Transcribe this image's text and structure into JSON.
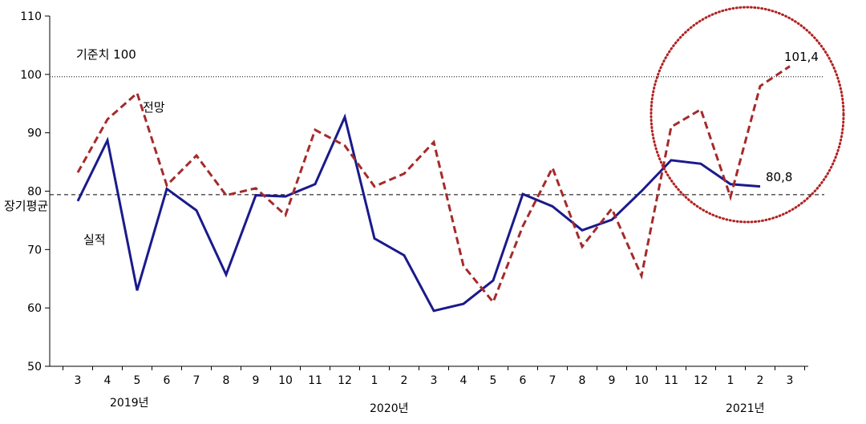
{
  "chart_data": {
    "type": "line",
    "categories": [
      "3",
      "4",
      "5",
      "6",
      "7",
      "8",
      "9",
      "10",
      "11",
      "12",
      "1",
      "2",
      "3",
      "4",
      "5",
      "6",
      "7",
      "8",
      "9",
      "10",
      "11",
      "12",
      "1",
      "2",
      "3"
    ],
    "year_labels": [
      "2019년",
      "2020년",
      "2021년"
    ],
    "ylim": [
      50,
      110
    ],
    "yticks": [
      50,
      60,
      70,
      80,
      90,
      100,
      110
    ],
    "series": [
      {
        "name": "실적",
        "color": "#1a1a8c",
        "style": "solid",
        "values": [
          78.3,
          88.7,
          63.0,
          80.4,
          76.7,
          65.7,
          79.3,
          79.1,
          81.2,
          92.7,
          71.9,
          69.0,
          59.5,
          60.7,
          64.7,
          79.5,
          77.4,
          73.3,
          75.1,
          80.0,
          85.3,
          84.7,
          81.2,
          80.8,
          null
        ]
      },
      {
        "name": "전망",
        "color": "#a52a2a",
        "style": "dashed",
        "values": [
          83.2,
          92.3,
          96.8,
          81.0,
          86.1,
          79.3,
          80.5,
          75.9,
          90.5,
          87.8,
          80.8,
          83.0,
          88.4,
          67.2,
          61.0,
          74.0,
          84.0,
          70.5,
          77.0,
          65.5,
          91.0,
          94.0,
          79.0,
          98.0,
          101.4
        ]
      }
    ],
    "reference_lines": [
      {
        "label": "기준치 100",
        "value": 99.6,
        "style": "dotted"
      },
      {
        "label": "장기평균",
        "value": 79.4,
        "style": "dashed"
      }
    ],
    "annotations": {
      "forecast_label": "전망",
      "actual_label": "실적",
      "last_forecast": "101,4",
      "last_actual": "80,8"
    },
    "highlight_color": "#b22222",
    "grid": false
  }
}
